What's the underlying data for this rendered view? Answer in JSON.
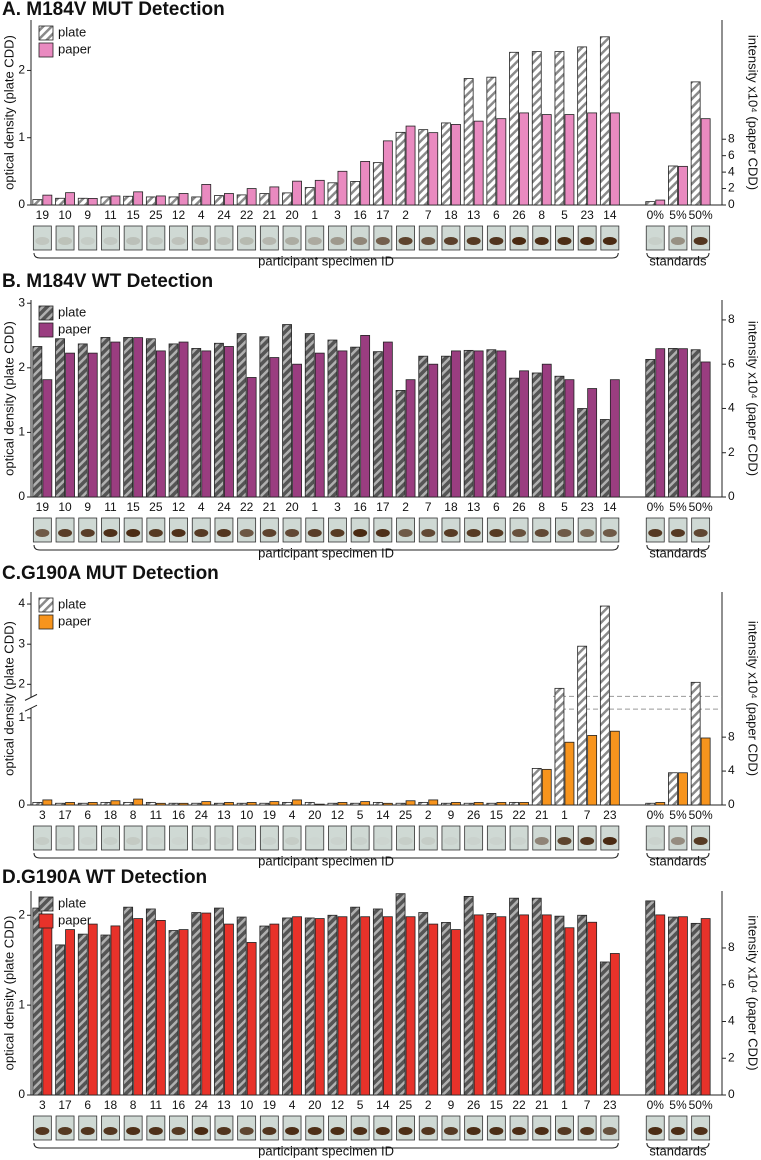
{
  "chart_data": [
    {
      "type": "bar",
      "title": "A. M184V MUT Detection",
      "ylabel": "optical density (plate CDD)",
      "y2label": "intensity x10⁴ (paper CDD)",
      "groups": [
        {
          "label": "participant specimen ID",
          "categories": [
            "19",
            "10",
            "9",
            "11",
            "15",
            "25",
            "12",
            "4",
            "24",
            "22",
            "21",
            "20",
            "1",
            "3",
            "16",
            "17",
            "2",
            "7",
            "18",
            "13",
            "6",
            "26",
            "8",
            "5",
            "23",
            "14"
          ]
        },
        {
          "label": "standards",
          "categories": [
            "0%",
            "5%",
            "50%"
          ]
        }
      ],
      "series": [
        {
          "name": "plate",
          "color": "#ffffff",
          "hatch": true,
          "values": [
            0.08,
            0.1,
            0.1,
            0.12,
            0.13,
            0.12,
            0.12,
            0.12,
            0.14,
            0.15,
            0.17,
            0.18,
            0.26,
            0.33,
            0.35,
            0.63,
            1.08,
            1.12,
            1.22,
            1.88,
            1.9,
            2.27,
            2.28,
            2.28,
            2.35,
            2.5,
            0.05,
            0.58,
            1.83
          ]
        },
        {
          "name": "paper",
          "color": "#e98ac0",
          "axis": "y2",
          "values": [
            1.2,
            1.5,
            0.8,
            1.1,
            1.6,
            1.1,
            1.4,
            2.5,
            1.4,
            2.0,
            2.2,
            2.9,
            3.0,
            4.1,
            5.3,
            7.8,
            9.6,
            8.8,
            9.8,
            10.2,
            10.5,
            11.2,
            11.0,
            11.0,
            11.2,
            11.2,
            0.6,
            4.7,
            10.5
          ]
        }
      ],
      "ylim": [
        0,
        2.75
      ],
      "yticks": [
        0,
        1,
        2
      ],
      "y2lim": [
        0,
        22.5
      ],
      "y2ticks": [
        0,
        2,
        4,
        6,
        8
      ],
      "legend": "upper left"
    },
    {
      "type": "bar",
      "title": "B. M184V WT Detection",
      "ylabel": "optical density (plate CDD)",
      "y2label": "intensity x10⁴ (paper CDD)",
      "groups": [
        {
          "label": "participant specimen ID",
          "categories": [
            "19",
            "10",
            "9",
            "11",
            "15",
            "25",
            "12",
            "4",
            "24",
            "22",
            "21",
            "20",
            "1",
            "3",
            "16",
            "17",
            "2",
            "7",
            "18",
            "13",
            "6",
            "26",
            "8",
            "5",
            "23",
            "14"
          ]
        },
        {
          "label": "standards",
          "categories": [
            "0%",
            "5%",
            "50%"
          ]
        }
      ],
      "series": [
        {
          "name": "plate",
          "color": "#555555",
          "hatch": true,
          "values": [
            2.33,
            2.45,
            2.37,
            2.47,
            2.47,
            2.45,
            2.37,
            2.3,
            2.38,
            2.53,
            2.48,
            2.67,
            2.53,
            2.43,
            2.32,
            2.25,
            1.65,
            2.18,
            2.18,
            2.27,
            2.28,
            1.84,
            1.92,
            1.87,
            1.37,
            1.2,
            2.13,
            2.3,
            2.28
          ]
        },
        {
          "name": "paper",
          "color": "#9a3d80",
          "axis": "y2",
          "values": [
            5.3,
            6.5,
            6.5,
            7.0,
            7.2,
            6.6,
            7.0,
            6.6,
            6.8,
            5.4,
            6.3,
            6.0,
            6.5,
            6.6,
            7.3,
            7.0,
            5.3,
            6.0,
            6.6,
            6.6,
            6.6,
            5.7,
            6.0,
            5.3,
            4.9,
            5.3,
            6.7,
            6.7,
            6.1
          ]
        }
      ],
      "ylim": [
        0,
        3.05
      ],
      "yticks": [
        0,
        1,
        2,
        3
      ],
      "y2lim": [
        0,
        8.9
      ],
      "y2ticks": [
        0,
        2,
        4,
        6,
        8
      ],
      "legend": "upper left"
    },
    {
      "type": "bar",
      "title": "C.G190A MUT Detection",
      "ylabel": "optical density (plate CDD)",
      "y2label": "intensity x10⁴ (paper CDD)",
      "groups": [
        {
          "label": "participant specimen ID",
          "categories": [
            "3",
            "17",
            "6",
            "18",
            "8",
            "11",
            "16",
            "24",
            "13",
            "10",
            "19",
            "4",
            "20",
            "12",
            "5",
            "14",
            "25",
            "2",
            "9",
            "26",
            "15",
            "22",
            "21",
            "1",
            "7",
            "23"
          ]
        },
        {
          "label": "standards",
          "categories": [
            "0%",
            "5%",
            "50%"
          ]
        }
      ],
      "series": [
        {
          "name": "plate",
          "color": "#ffffff",
          "hatch": true,
          "values": [
            0.03,
            0.02,
            0.02,
            0.03,
            0.03,
            0.03,
            0.02,
            0.02,
            0.02,
            0.02,
            0.02,
            0.03,
            0.03,
            0.02,
            0.02,
            0.03,
            0.02,
            0.03,
            0.02,
            0.02,
            0.02,
            0.03,
            0.42,
            1.9,
            2.95,
            3.95,
            0.02,
            0.37,
            2.05
          ]
        },
        {
          "name": "paper",
          "color": "#f7941d",
          "axis": "y2",
          "values": [
            0.6,
            0.3,
            0.3,
            0.5,
            0.7,
            0.2,
            0.2,
            0.4,
            0.3,
            0.3,
            0.4,
            0.6,
            0.1,
            0.3,
            0.4,
            0.2,
            0.5,
            0.6,
            0.3,
            0.3,
            0.3,
            0.3,
            4.2,
            7.4,
            8.2,
            8.7,
            0.3,
            3.8,
            7.9
          ]
        }
      ],
      "ylim": [
        0,
        4.3
      ],
      "ybreak": [
        1.1,
        1.7
      ],
      "yticks": [
        0,
        1,
        2,
        3,
        4
      ],
      "y2lim": [
        0,
        11.3
      ],
      "y2ticks": [
        0,
        4,
        8
      ],
      "legend": "upper left"
    },
    {
      "type": "bar",
      "title": "D.G190A WT Detection",
      "ylabel": "optical density (plate CDD)",
      "y2label": "intensity x10⁴ (paper CDD)",
      "groups": [
        {
          "label": "participant specimen ID",
          "categories": [
            "3",
            "17",
            "6",
            "18",
            "8",
            "11",
            "16",
            "24",
            "13",
            "10",
            "19",
            "4",
            "20",
            "12",
            "5",
            "14",
            "25",
            "2",
            "9",
            "26",
            "15",
            "22",
            "21",
            "1",
            "7",
            "23"
          ]
        },
        {
          "label": "standards",
          "categories": [
            "0%",
            "5%",
            "50%"
          ]
        }
      ],
      "series": [
        {
          "name": "plate",
          "color": "#555555",
          "hatch": true,
          "values": [
            2.08,
            1.67,
            1.79,
            1.78,
            2.09,
            2.07,
            1.83,
            2.03,
            2.08,
            1.98,
            1.88,
            1.97,
            1.97,
            2.0,
            2.09,
            2.07,
            2.24,
            2.03,
            1.92,
            2.21,
            2.02,
            2.19,
            2.19,
            1.99,
            2.0,
            1.48,
            2.16,
            1.98,
            1.91
          ]
        },
        {
          "name": "paper",
          "color": "#e8322a",
          "axis": "y2",
          "values": [
            9.2,
            9.0,
            9.3,
            9.2,
            9.6,
            9.5,
            9.0,
            9.9,
            9.3,
            8.3,
            9.3,
            9.7,
            9.6,
            9.7,
            9.7,
            9.7,
            9.7,
            9.3,
            9.0,
            9.8,
            9.7,
            9.8,
            9.8,
            9.1,
            9.4,
            7.7,
            9.8,
            9.7,
            9.6
          ]
        }
      ],
      "ylim": [
        0,
        2.27
      ],
      "yticks": [
        0,
        1,
        2
      ],
      "y2lim": [
        0,
        11.1
      ],
      "y2ticks": [
        0,
        2,
        4,
        6,
        8
      ],
      "legend": "upper left"
    }
  ]
}
